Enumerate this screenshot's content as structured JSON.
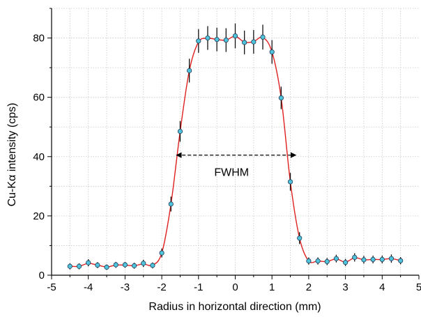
{
  "chart_data": {
    "type": "scatter",
    "xlabel": "Radius in horizontal direction (mm)",
    "ylabel": "Cu-Kα intensity (cps)",
    "xlim": [
      -5,
      5
    ],
    "ylim": [
      0,
      90
    ],
    "xticks": [
      -5,
      -4,
      -3,
      -2,
      -1,
      0,
      1,
      2,
      3,
      4,
      5
    ],
    "yticks": [
      0,
      20,
      40,
      60,
      80
    ],
    "grid": true,
    "grid_style": "dotted",
    "series": [
      {
        "kind": "points_with_error_bars",
        "marker_color": "#4fc3d9",
        "marker_edge": "#1f3a5a",
        "errorbar_color": "#111111",
        "points": [
          {
            "x": -4.5,
            "y": 3.0,
            "err": 1.0
          },
          {
            "x": -4.25,
            "y": 3.0,
            "err": 1.0
          },
          {
            "x": -4.0,
            "y": 4.2,
            "err": 1.2
          },
          {
            "x": -3.75,
            "y": 3.4,
            "err": 1.0
          },
          {
            "x": -3.5,
            "y": 2.7,
            "err": 0.9
          },
          {
            "x": -3.25,
            "y": 3.5,
            "err": 1.0
          },
          {
            "x": -3.0,
            "y": 3.5,
            "err": 1.0
          },
          {
            "x": -2.75,
            "y": 3.2,
            "err": 1.0
          },
          {
            "x": -2.5,
            "y": 4.0,
            "err": 1.2
          },
          {
            "x": -2.25,
            "y": 3.3,
            "err": 1.0
          },
          {
            "x": -2.0,
            "y": 7.5,
            "err": 1.5
          },
          {
            "x": -1.75,
            "y": 24.0,
            "err": 2.5
          },
          {
            "x": -1.5,
            "y": 48.5,
            "err": 3.5
          },
          {
            "x": -1.25,
            "y": 69.0,
            "err": 4.0
          },
          {
            "x": -1.0,
            "y": 79.0,
            "err": 4.0
          },
          {
            "x": -0.75,
            "y": 80.0,
            "err": 4.0
          },
          {
            "x": -0.5,
            "y": 79.5,
            "err": 4.0
          },
          {
            "x": -0.25,
            "y": 79.3,
            "err": 4.0
          },
          {
            "x": 0.0,
            "y": 80.7,
            "err": 4.2
          },
          {
            "x": 0.25,
            "y": 78.5,
            "err": 4.0
          },
          {
            "x": 0.5,
            "y": 78.7,
            "err": 4.0
          },
          {
            "x": 0.75,
            "y": 80.3,
            "err": 4.2
          },
          {
            "x": 1.0,
            "y": 75.3,
            "err": 4.0
          },
          {
            "x": 1.25,
            "y": 59.8,
            "err": 3.8
          },
          {
            "x": 1.5,
            "y": 31.5,
            "err": 3.0
          },
          {
            "x": 1.75,
            "y": 12.5,
            "err": 2.0
          },
          {
            "x": 2.0,
            "y": 4.8,
            "err": 1.2
          },
          {
            "x": 2.25,
            "y": 4.8,
            "err": 1.2
          },
          {
            "x": 2.5,
            "y": 4.6,
            "err": 1.2
          },
          {
            "x": 2.75,
            "y": 5.6,
            "err": 1.3
          },
          {
            "x": 3.0,
            "y": 4.3,
            "err": 1.2
          },
          {
            "x": 3.25,
            "y": 6.0,
            "err": 1.4
          },
          {
            "x": 3.5,
            "y": 5.2,
            "err": 1.3
          },
          {
            "x": 3.75,
            "y": 5.3,
            "err": 1.3
          },
          {
            "x": 4.0,
            "y": 5.3,
            "err": 1.3
          },
          {
            "x": 4.25,
            "y": 5.6,
            "err": 1.4
          },
          {
            "x": 4.5,
            "y": 4.9,
            "err": 1.2
          }
        ]
      },
      {
        "kind": "smooth_fit_line",
        "color": "#e02020",
        "points": [
          [
            -4.5,
            3.0
          ],
          [
            -4.25,
            3.0
          ],
          [
            -4.0,
            4.0
          ],
          [
            -3.75,
            3.4
          ],
          [
            -3.5,
            2.8
          ],
          [
            -3.25,
            3.4
          ],
          [
            -3.0,
            3.4
          ],
          [
            -2.75,
            3.2
          ],
          [
            -2.5,
            3.8
          ],
          [
            -2.25,
            3.4
          ],
          [
            -2.0,
            7.5
          ],
          [
            -1.75,
            24.0
          ],
          [
            -1.5,
            48.5
          ],
          [
            -1.25,
            69.0
          ],
          [
            -1.0,
            78.6
          ],
          [
            -0.75,
            79.9
          ],
          [
            -0.5,
            79.5
          ],
          [
            -0.25,
            79.3
          ],
          [
            0.0,
            80.6
          ],
          [
            0.25,
            78.6
          ],
          [
            0.5,
            78.8
          ],
          [
            0.75,
            80.2
          ],
          [
            1.0,
            75.3
          ],
          [
            1.25,
            59.8
          ],
          [
            1.5,
            31.5
          ],
          [
            1.75,
            12.5
          ],
          [
            2.0,
            4.8
          ],
          [
            2.25,
            4.8
          ],
          [
            2.5,
            4.6
          ],
          [
            2.75,
            5.5
          ],
          [
            3.0,
            4.4
          ],
          [
            3.25,
            5.9
          ],
          [
            3.5,
            5.2
          ],
          [
            3.75,
            5.3
          ],
          [
            4.0,
            5.3
          ],
          [
            4.25,
            5.6
          ],
          [
            4.5,
            4.9
          ]
        ]
      }
    ],
    "annotations": [
      {
        "type": "double_arrow",
        "x_from": -1.6,
        "x_to": 1.65,
        "y": 40.5,
        "style": "dashed",
        "color": "#000000"
      },
      {
        "type": "text",
        "text": "FWHM",
        "x": -0.1,
        "y": 33.5
      }
    ]
  }
}
